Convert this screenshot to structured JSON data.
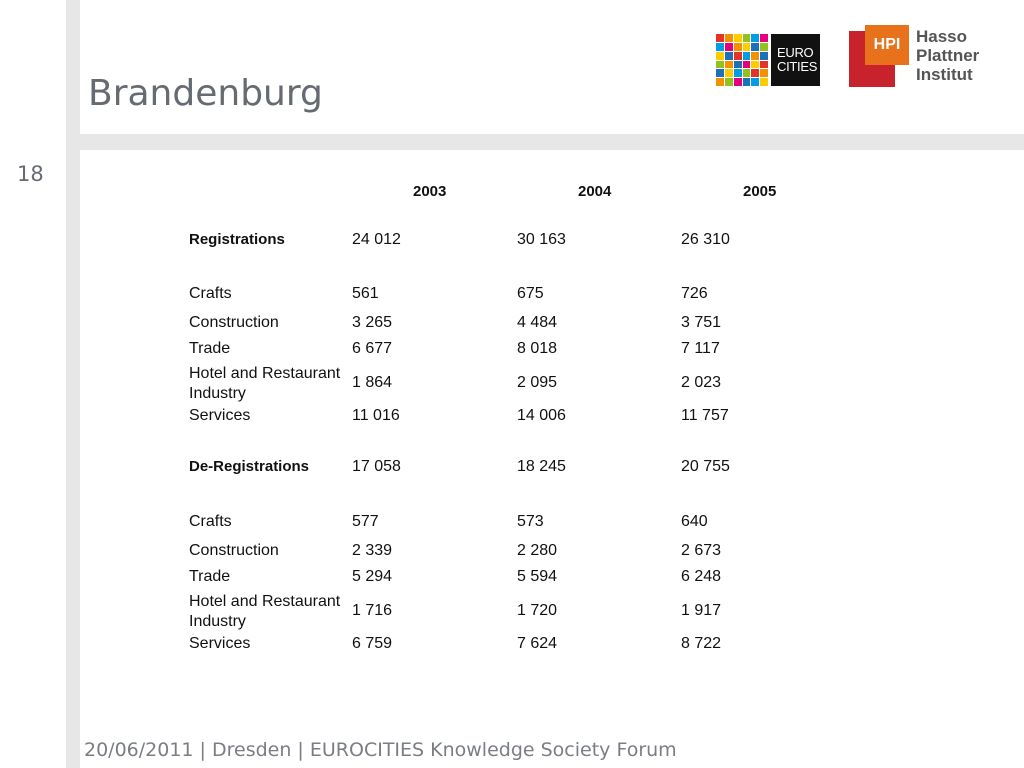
{
  "slide": {
    "title": "Brandenburg",
    "number": "18",
    "footer": "20/06/2011 | Dresden | EUROCITIES Knowledge Society Forum"
  },
  "logos": {
    "eurocities": {
      "line1": "EURO",
      "line2": "CITIES"
    },
    "hpi": {
      "badge": "HPI",
      "line1": "Hasso",
      "line2": "Plattner",
      "line3": "Institut"
    }
  },
  "table": {
    "years": [
      "2003",
      "2004",
      "2005"
    ],
    "rows": [
      {
        "label": "Registrations",
        "bold": true,
        "values": [
          "24 012",
          "30 163",
          "26 310"
        ]
      },
      {
        "label": "Crafts",
        "values": [
          "561",
          "675",
          "726"
        ]
      },
      {
        "label": "Construction",
        "values": [
          "3 265",
          "4 484",
          "3 751"
        ]
      },
      {
        "label": "Trade",
        "values": [
          "6 677",
          "8 018",
          "7 117"
        ]
      },
      {
        "label": "Hotel and Restaurant Industry",
        "values": [
          "1 864",
          "2 095",
          "2 023"
        ]
      },
      {
        "label": "Services",
        "values": [
          "11 016",
          "14 006",
          "11 757"
        ]
      },
      {
        "label": "De-Registrations",
        "bold": true,
        "values": [
          "17 058",
          "18 245",
          "20 755"
        ]
      },
      {
        "label": "Crafts",
        "values": [
          "577",
          "573",
          "640"
        ]
      },
      {
        "label": "Construction",
        "values": [
          "2 339",
          "2 280",
          "2 673"
        ]
      },
      {
        "label": "Trade",
        "values": [
          "5 294",
          "5 594",
          "6 248"
        ]
      },
      {
        "label": "Hotel and Restaurant Industry",
        "values": [
          "1 716",
          "1 720",
          "1 917"
        ]
      },
      {
        "label": "Services",
        "values": [
          "6 759",
          "7 624",
          "8 722"
        ]
      }
    ]
  }
}
